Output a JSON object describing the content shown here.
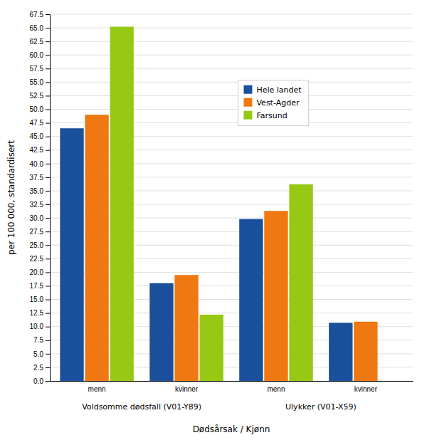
{
  "chart_data": {
    "type": "bar",
    "xlabel": "Dødsårsak / Kjønn",
    "ylabel": "per 100 000, standardisert",
    "categories": [
      "menn",
      "kvinner",
      "menn",
      "kvinner"
    ],
    "annotations": [
      "Voldsomme dødsfall (V01-Y89)",
      "Ulykker (V01-X59)"
    ],
    "series": [
      {
        "name": "Hele landet",
        "color": "#1a4f9c",
        "values": [
          46.5,
          18.0,
          29.8,
          10.7
        ]
      },
      {
        "name": "Vest-Agder",
        "color": "#f07810",
        "values": [
          49.0,
          19.5,
          31.3,
          10.9
        ]
      },
      {
        "name": "Farsund",
        "color": "#96c814",
        "values": [
          65.2,
          12.2,
          36.2,
          0.0
        ]
      }
    ],
    "ylim": [
      0.0,
      67.5
    ],
    "yticks": [
      {
        "value": 0,
        "label": "0.0"
      },
      2.5,
      {
        "value": 5,
        "label": "5.0"
      },
      7.5,
      {
        "value": 10,
        "label": "10.0"
      },
      12.5,
      {
        "value": 15,
        "label": "15.0"
      },
      17.5,
      {
        "value": 20,
        "label": "20.0"
      },
      22.5,
      {
        "value": 25,
        "label": "25.0"
      },
      27.5,
      {
        "value": 30,
        "label": "30.0"
      },
      32.5,
      {
        "value": 35,
        "label": "35.0"
      },
      37.5,
      {
        "value": 40,
        "label": "40.0"
      },
      42.5,
      {
        "value": 45,
        "label": "45.0"
      },
      47.5,
      {
        "value": 50,
        "label": "50.0"
      },
      52.5,
      {
        "value": 55,
        "label": "55.0"
      },
      57.5,
      {
        "value": 60,
        "label": "60.0"
      },
      62.5,
      {
        "value": 65,
        "label": "65.0"
      },
      67.5
    ],
    "grid": true,
    "legend": "right"
  }
}
